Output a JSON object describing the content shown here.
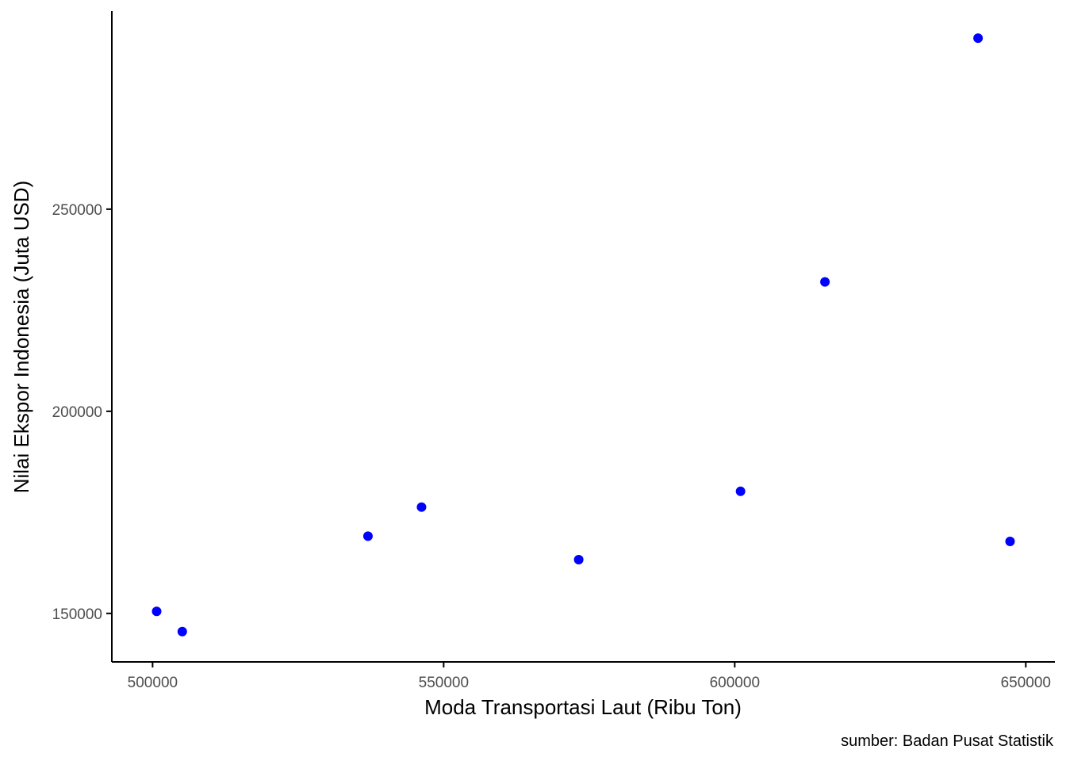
{
  "chart_data": {
    "type": "scatter",
    "title": "",
    "xlabel": "Moda Transportasi Laut (Ribu Ton)",
    "ylabel": "Nilai Ekspor Indonesia (Juta USD)",
    "caption": "sumber: Badan Pusat Statistik",
    "xlim": [
      493000,
      655000
    ],
    "ylim": [
      138000,
      299000
    ],
    "x_ticks": [
      500000,
      550000,
      600000,
      650000
    ],
    "y_ticks": [
      150000,
      200000,
      250000
    ],
    "x_tick_labels": [
      "500000",
      "550000",
      "600000",
      "650000"
    ],
    "y_tick_labels": [
      "150000",
      "200000",
      "250000"
    ],
    "grid": false,
    "point_color": "#0000ff",
    "axis_color": "#000000",
    "tick_label_color": "#4d4d4d",
    "points": [
      {
        "x": 500700,
        "y": 150500
      },
      {
        "x": 505100,
        "y": 145500
      },
      {
        "x": 537000,
        "y": 169100
      },
      {
        "x": 546200,
        "y": 176300
      },
      {
        "x": 573200,
        "y": 163300
      },
      {
        "x": 601000,
        "y": 180200
      },
      {
        "x": 615500,
        "y": 232000
      },
      {
        "x": 641800,
        "y": 292300
      },
      {
        "x": 647300,
        "y": 167800
      }
    ]
  }
}
